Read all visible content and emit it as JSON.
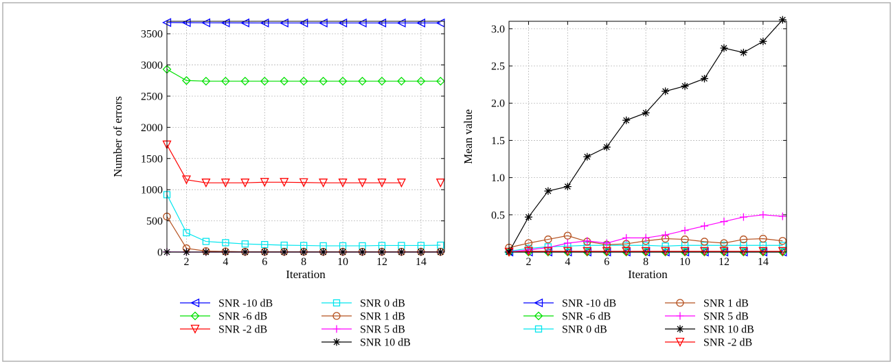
{
  "chart_data": [
    {
      "type": "line",
      "xlabel": "Iteration",
      "ylabel": "Number of errors",
      "xlim": [
        1,
        15.2
      ],
      "ylim": [
        0,
        3700
      ],
      "xticks": [
        2,
        4,
        6,
        8,
        10,
        12,
        14
      ],
      "xtick_labels": [
        "2",
        "4",
        "6",
        "8",
        "10",
        "12",
        "14"
      ],
      "yticks": [
        0,
        500,
        1000,
        1500,
        2000,
        2500,
        3000,
        3500
      ],
      "ytick_labels": [
        "0",
        "500",
        "1000",
        "1500",
        "2000",
        "2500",
        "3000",
        "3500"
      ],
      "grid": true,
      "legend_placement": "below",
      "x": [
        1,
        2,
        3,
        4,
        5,
        6,
        7,
        8,
        9,
        10,
        11,
        12,
        13,
        14,
        15
      ],
      "series": [
        {
          "name": "SNR -10 dB",
          "color": "#0000ff",
          "marker": "triangle-left",
          "values": [
            3680,
            3678,
            3676,
            3675,
            3674,
            3673,
            3673,
            3673,
            3673,
            3673,
            3673,
            3673,
            3673,
            3673,
            3673
          ]
        },
        {
          "name": "SNR -6 dB",
          "color": "#00e000",
          "marker": "diamond",
          "values": [
            2930,
            2750,
            2740,
            2740,
            2740,
            2740,
            2740,
            2740,
            2740,
            2740,
            2740,
            2740,
            2740,
            2740,
            2740
          ]
        },
        {
          "name": "SNR -2 dB",
          "color": "#ff0000",
          "marker": "triangle-down",
          "values": [
            1720,
            1160,
            1110,
            1110,
            1110,
            1120,
            1120,
            1115,
            1110,
            1110,
            1110,
            1110,
            1110,
            null,
            1110
          ]
        },
        {
          "name": "SNR 0 dB",
          "color": "#00e5ee",
          "marker": "square",
          "values": [
            920,
            310,
            170,
            150,
            130,
            120,
            110,
            105,
            100,
            100,
            100,
            105,
            105,
            105,
            110
          ]
        },
        {
          "name": "SNR 1 dB",
          "color": "#b5501e",
          "marker": "circle",
          "values": [
            570,
            60,
            15,
            10,
            5,
            5,
            5,
            5,
            5,
            5,
            5,
            5,
            5,
            5,
            5
          ]
        },
        {
          "name": "SNR 5 dB",
          "color": "#ff00ff",
          "marker": "plus",
          "values": [
            2,
            0,
            0,
            0,
            0,
            0,
            0,
            0,
            0,
            0,
            0,
            0,
            0,
            0,
            0
          ]
        },
        {
          "name": "SNR 10 dB",
          "color": "#000000",
          "marker": "star",
          "values": [
            0,
            0,
            0,
            0,
            0,
            0,
            0,
            0,
            0,
            0,
            0,
            0,
            0,
            0,
            0
          ]
        }
      ],
      "legend": [
        [
          "SNR -10 dB",
          "SNR -6 dB",
          "SNR -2 dB"
        ],
        [
          "SNR 0 dB",
          "SNR 1 dB",
          "SNR 5 dB",
          "SNR 10 dB"
        ]
      ]
    },
    {
      "type": "line",
      "xlabel": "Iteration",
      "ylabel": "Mean value",
      "xlim": [
        1,
        15.2
      ],
      "ylim": [
        0,
        3.1
      ],
      "xticks": [
        2,
        4,
        6,
        8,
        10,
        12,
        14
      ],
      "xtick_labels": [
        "2",
        "4",
        "6",
        "8",
        "10",
        "12",
        "14"
      ],
      "yticks": [
        0.5,
        1.0,
        1.5,
        2.0,
        2.5,
        3.0
      ],
      "ytick_labels": [
        "0.5",
        "1.0",
        "1.5",
        "2.0",
        "2.5",
        "3.0"
      ],
      "grid": true,
      "legend_placement": "below",
      "x": [
        1,
        2,
        3,
        4,
        5,
        6,
        7,
        8,
        9,
        10,
        11,
        12,
        13,
        14,
        15
      ],
      "series": [
        {
          "name": "SNR -10 dB",
          "color": "#0000ff",
          "marker": "triangle-left",
          "values": [
            0,
            0,
            0,
            0,
            0,
            0,
            0,
            0,
            0,
            0,
            0,
            0,
            0,
            0,
            0
          ]
        },
        {
          "name": "SNR -6 dB",
          "color": "#00e000",
          "marker": "diamond",
          "values": [
            0,
            0,
            0,
            0,
            0,
            0,
            0,
            0,
            0,
            0,
            0,
            0,
            0,
            0,
            0
          ]
        },
        {
          "name": "SNR 0 dB",
          "color": "#00e5ee",
          "marker": "square",
          "values": [
            0.01,
            0.05,
            0.07,
            0.08,
            0.09,
            0.09,
            0.09,
            0.09,
            0.08,
            0.09,
            0.09,
            0.09,
            0.09,
            0.09,
            0.09
          ]
        },
        {
          "name": "SNR 1 dB",
          "color": "#b5501e",
          "marker": "circle",
          "values": [
            0.06,
            0.12,
            0.17,
            0.22,
            0.14,
            0.1,
            0.11,
            0.15,
            0.18,
            0.17,
            0.14,
            0.12,
            0.17,
            0.18,
            0.15
          ]
        },
        {
          "name": "SNR 5 dB",
          "color": "#ff00ff",
          "marker": "plus",
          "values": [
            0.0,
            0.03,
            0.06,
            0.12,
            0.15,
            0.12,
            0.19,
            0.19,
            0.23,
            0.29,
            0.35,
            0.41,
            0.47,
            0.5,
            0.48
          ]
        },
        {
          "name": "SNR 10 dB",
          "color": "#000000",
          "marker": "star",
          "values": [
            0.0,
            0.47,
            0.82,
            0.88,
            1.28,
            1.41,
            1.77,
            1.87,
            2.16,
            2.23,
            2.33,
            2.74,
            2.68,
            2.83,
            3.12
          ]
        },
        {
          "name": "SNR -2 dB",
          "color": "#ff0000",
          "marker": "triangle-down",
          "values": [
            0,
            0.01,
            0.01,
            0.01,
            0.01,
            0.01,
            0.01,
            0.01,
            0.01,
            0.01,
            0.01,
            0.01,
            0.01,
            0.01,
            0.01
          ]
        }
      ],
      "legend": [
        [
          "SNR -10 dB",
          "SNR -6 dB",
          "SNR 0 dB"
        ],
        [
          "SNR 1 dB",
          "SNR 5 dB",
          "SNR 10 dB",
          "SNR -2 dB"
        ]
      ]
    }
  ]
}
